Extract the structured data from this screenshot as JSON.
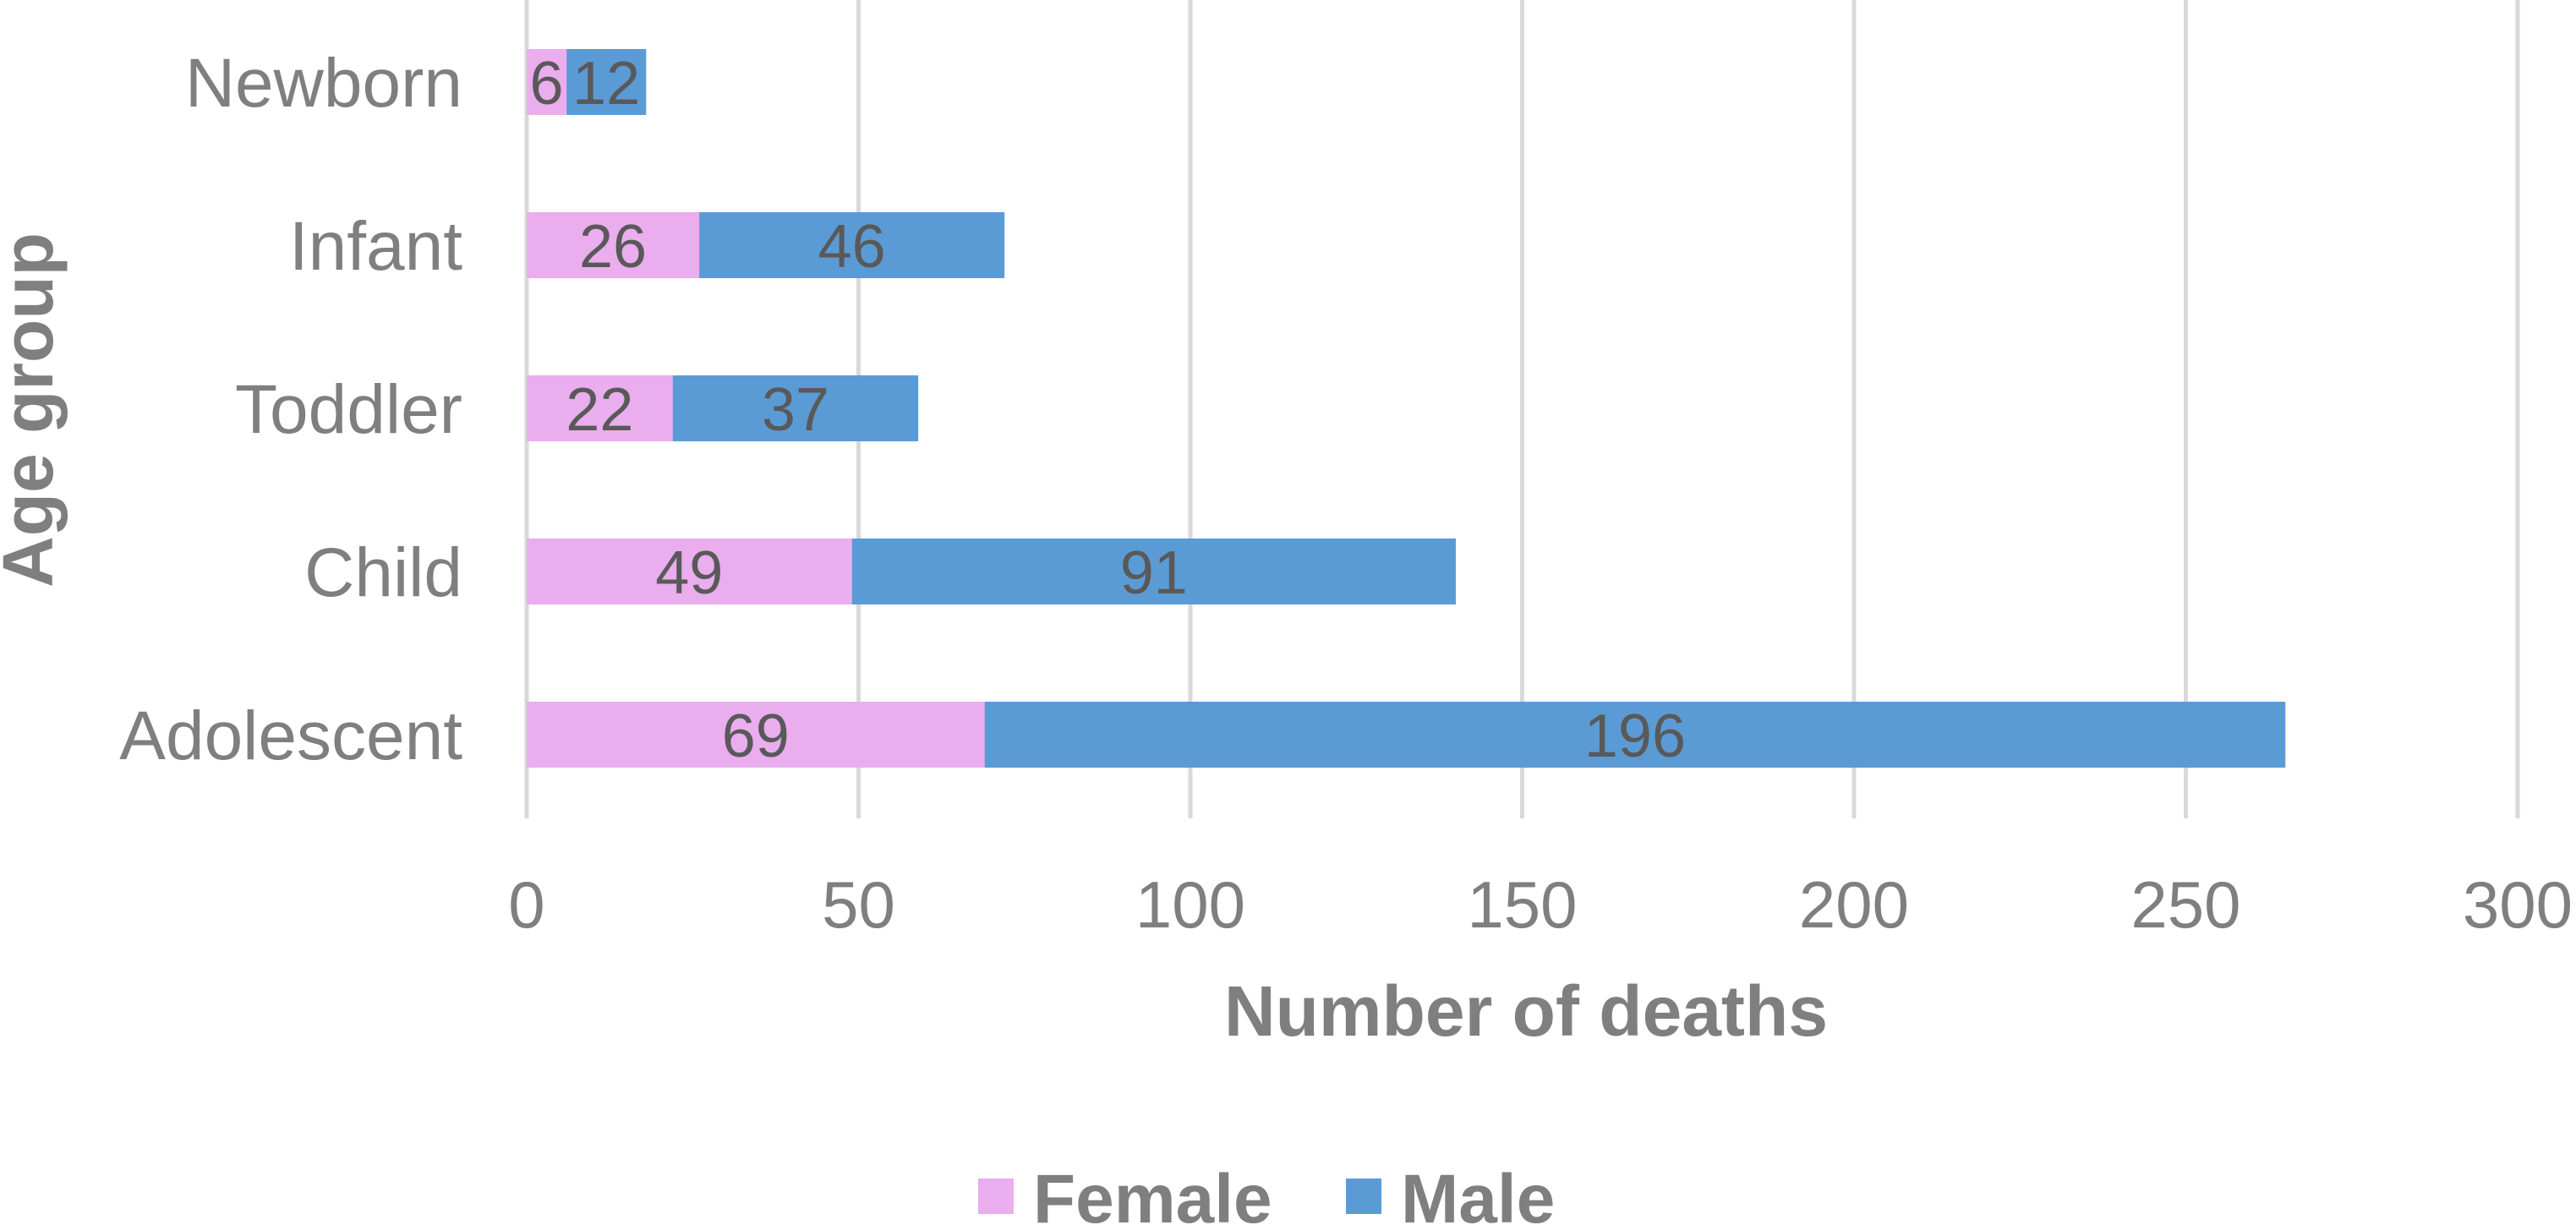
{
  "chart_data": {
    "type": "bar",
    "orientation": "horizontal",
    "stacked": true,
    "categories": [
      "Newborn",
      "Infant",
      "Toddler",
      "Child",
      "Adolescent"
    ],
    "series": [
      {
        "name": "Female",
        "values": [
          6,
          26,
          22,
          49,
          69
        ],
        "color": "#eaadee"
      },
      {
        "name": "Male",
        "values": [
          12,
          46,
          37,
          91,
          196
        ],
        "color": "#5b9bd5"
      }
    ],
    "xlabel": "Number of deaths",
    "ylabel": "Age group",
    "xlim": [
      0,
      300
    ],
    "xticks": [
      0,
      50,
      100,
      150,
      200,
      250,
      300
    ],
    "grid": "vertical",
    "legend": "bottom"
  }
}
